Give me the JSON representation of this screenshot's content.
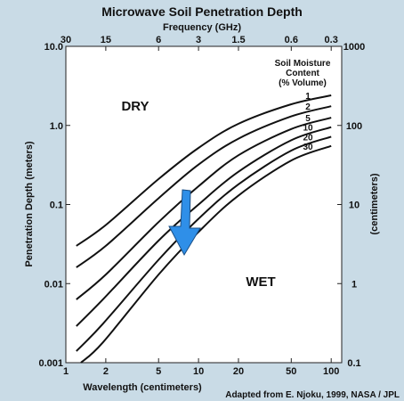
{
  "chart_data": {
    "type": "line",
    "title": "Microwave Soil Penetration Depth",
    "top_axis_label": "Frequency (GHz)",
    "top_ticks": [
      {
        "label": "30",
        "wavelength": 1.0
      },
      {
        "label": "15",
        "wavelength": 2.0
      },
      {
        "label": "6",
        "wavelength": 5.0
      },
      {
        "label": "3",
        "wavelength": 10.0
      },
      {
        "label": "1.5",
        "wavelength": 20.0
      },
      {
        "label": "0.6",
        "wavelength": 50.0
      },
      {
        "label": "0.3",
        "wavelength": 100.0
      }
    ],
    "xlabel": "Wavelength (centimeters)",
    "x_scale": "log",
    "xlim": [
      1,
      120
    ],
    "x_ticks": [
      {
        "label": "1",
        "value": 1
      },
      {
        "label": "2",
        "value": 2
      },
      {
        "label": "5",
        "value": 5
      },
      {
        "label": "10",
        "value": 10
      },
      {
        "label": "20",
        "value": 20
      },
      {
        "label": "50",
        "value": 50
      },
      {
        "label": "100",
        "value": 100
      }
    ],
    "ylabel": "Penetration Depth (meters)",
    "y_scale": "log",
    "ylim": [
      0.001,
      10
    ],
    "y_ticks": [
      {
        "label": "10.0",
        "value": 10
      },
      {
        "label": "1.0",
        "value": 1
      },
      {
        "label": "0.1",
        "value": 0.1
      },
      {
        "label": "0.01",
        "value": 0.01
      },
      {
        "label": "0.001",
        "value": 0.001
      }
    ],
    "right_axis_label": "(centimeters)",
    "right_ticks": [
      {
        "label": "1000",
        "value": 10
      },
      {
        "label": "100",
        "value": 1
      },
      {
        "label": "10",
        "value": 0.1
      },
      {
        "label": "1",
        "value": 0.01
      },
      {
        "label": "0.1",
        "value": 0.001
      }
    ],
    "legend_title": [
      "Soil Moisture",
      "Content",
      "(% Volume)"
    ],
    "legend_placement": "top-right",
    "series": [
      {
        "name": "1",
        "x": [
          1.2,
          2,
          5,
          10,
          20,
          50,
          100
        ],
        "y": [
          0.03,
          0.055,
          0.21,
          0.52,
          1.05,
          1.85,
          2.4
        ]
      },
      {
        "name": "2",
        "x": [
          1.2,
          2,
          5,
          10,
          20,
          50,
          100
        ],
        "y": [
          0.016,
          0.03,
          0.12,
          0.32,
          0.68,
          1.3,
          1.75
        ]
      },
      {
        "name": "5",
        "x": [
          1.2,
          2,
          5,
          10,
          20,
          50,
          100
        ],
        "y": [
          0.0063,
          0.013,
          0.06,
          0.17,
          0.42,
          0.9,
          1.25
        ]
      },
      {
        "name": "10",
        "x": [
          1.2,
          1.9,
          5,
          10,
          20,
          50,
          100
        ],
        "y": [
          0.0029,
          0.0063,
          0.035,
          0.1,
          0.26,
          0.65,
          0.95
        ]
      },
      {
        "name": "20",
        "x": [
          1.2,
          1.9,
          5,
          10,
          20,
          50,
          100
        ],
        "y": [
          0.0014,
          0.0031,
          0.02,
          0.066,
          0.18,
          0.48,
          0.72
        ]
      },
      {
        "name": "30",
        "x": [
          1.3,
          1.9,
          5,
          10,
          20,
          50,
          100
        ],
        "y": [
          0.001,
          0.0018,
          0.013,
          0.045,
          0.13,
          0.36,
          0.55
        ]
      }
    ],
    "annotations": {
      "dry": "DRY",
      "wet": "WET"
    },
    "arrow_color": "#2f8fe8",
    "grid": false
  },
  "credit": "Adapted from E. Njoku, 1999, NASA / JPL"
}
